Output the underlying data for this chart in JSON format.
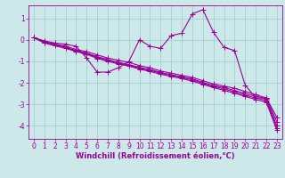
{
  "background_color": "#cce8e8",
  "grid_color": "#99cccc",
  "line_color": "#990099",
  "marker": "+",
  "markersize": 4,
  "linewidth": 0.8,
  "xlabel": "Windchill (Refroidissement éolien,°C)",
  "xlabel_fontsize": 6,
  "tick_fontsize": 5.5,
  "xlim": [
    -0.5,
    23.5
  ],
  "ylim": [
    -4.6,
    1.6
  ],
  "yticks": [
    -4,
    -3,
    -2,
    -1,
    0,
    1
  ],
  "xticks": [
    0,
    1,
    2,
    3,
    4,
    5,
    6,
    7,
    8,
    9,
    10,
    11,
    12,
    13,
    14,
    15,
    16,
    17,
    18,
    19,
    20,
    21,
    22,
    23
  ],
  "lines": [
    [
      0.1,
      -0.05,
      -0.15,
      -0.2,
      -0.3,
      -0.85,
      -1.5,
      -1.5,
      -1.3,
      -1.0,
      0.0,
      -0.3,
      -0.4,
      0.2,
      0.3,
      1.2,
      1.4,
      0.35,
      -0.35,
      -0.5,
      -2.1,
      -2.7,
      -2.7,
      -3.6
    ],
    [
      0.1,
      -0.1,
      -0.2,
      -0.3,
      -0.45,
      -0.55,
      -0.7,
      -0.85,
      -0.95,
      -1.05,
      -1.2,
      -1.3,
      -1.45,
      -1.55,
      -1.65,
      -1.75,
      -1.9,
      -2.05,
      -2.15,
      -2.25,
      -2.4,
      -2.55,
      -2.7,
      -3.8
    ],
    [
      0.1,
      -0.1,
      -0.2,
      -0.35,
      -0.5,
      -0.62,
      -0.78,
      -0.92,
      -1.05,
      -1.15,
      -1.28,
      -1.38,
      -1.52,
      -1.62,
      -1.72,
      -1.82,
      -1.98,
      -2.12,
      -2.22,
      -2.35,
      -2.5,
      -2.62,
      -2.75,
      -4.0
    ],
    [
      0.1,
      -0.12,
      -0.23,
      -0.35,
      -0.52,
      -0.65,
      -0.82,
      -0.97,
      -1.08,
      -1.18,
      -1.32,
      -1.42,
      -1.55,
      -1.65,
      -1.75,
      -1.86,
      -2.02,
      -2.17,
      -2.28,
      -2.42,
      -2.57,
      -2.7,
      -2.82,
      -4.1
    ],
    [
      0.1,
      -0.15,
      -0.28,
      -0.4,
      -0.54,
      -0.68,
      -0.86,
      -1.0,
      -1.12,
      -1.22,
      -1.36,
      -1.47,
      -1.6,
      -1.7,
      -1.8,
      -1.92,
      -2.07,
      -2.22,
      -2.35,
      -2.48,
      -2.63,
      -2.77,
      -2.9,
      -4.2
    ]
  ]
}
